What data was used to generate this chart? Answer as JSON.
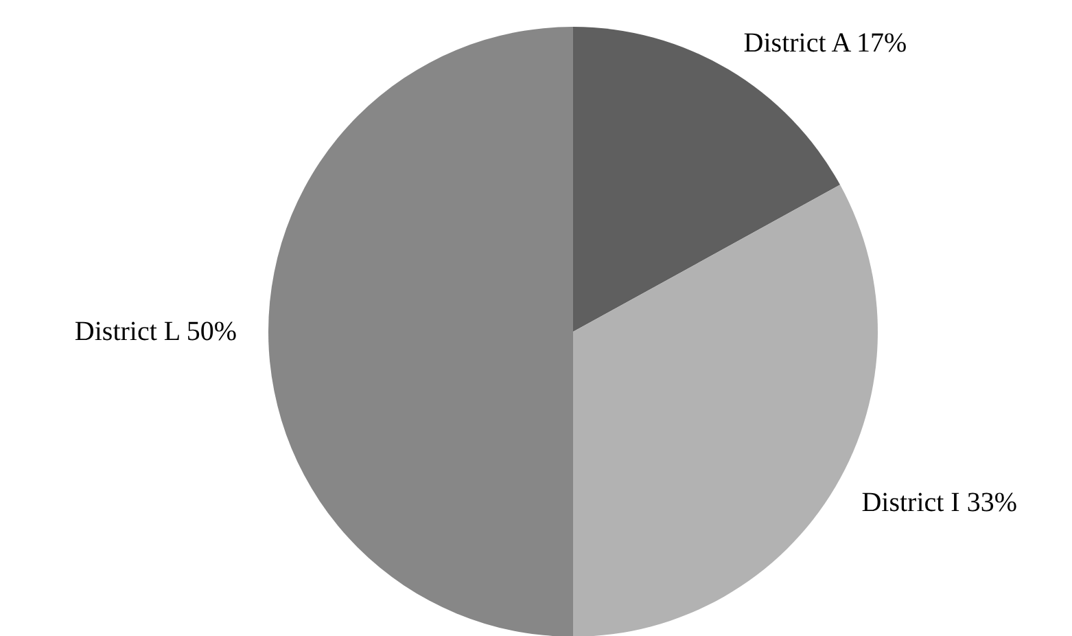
{
  "chart_data": {
    "type": "pie",
    "categories": [
      "District A",
      "District I",
      "District L"
    ],
    "values": [
      17,
      33,
      50
    ],
    "colors": [
      "#5f5f5f",
      "#b2b2b2",
      "#878787"
    ],
    "value_labels": [
      "17%",
      "33%",
      "50%"
    ]
  }
}
